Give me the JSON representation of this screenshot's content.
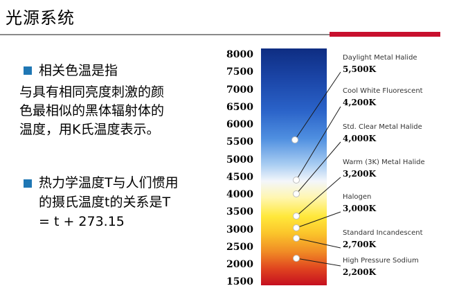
{
  "header": {
    "title": "光源系统"
  },
  "bullets": [
    {
      "heading": "相关色温是指",
      "lines": [
        "与具有相同亮度刺激的颜",
        "色最相似的黑体辐射体的",
        "温度，用K氏温度表示。"
      ]
    },
    {
      "lines": [
        "热力学温度T与人们惯用",
        "的摄氏温度t的关系是T",
        "= t + 273.15"
      ]
    }
  ],
  "scale": [
    "8000",
    "7500",
    "7000",
    "6500",
    "6000",
    "5500",
    "5000",
    "4500",
    "4000",
    "3500",
    "3000",
    "2500",
    "2000",
    "1500"
  ],
  "sources": [
    {
      "name": "Daylight Metal Halide",
      "temp": "5,500K"
    },
    {
      "name": "Cool White Fluorescent",
      "temp": "4,200K"
    },
    {
      "name": "Std. Clear Metal Halide",
      "temp": "4,000K"
    },
    {
      "name": "Warm (3K) Metal Halide",
      "temp": "3,200K"
    },
    {
      "name": "Halogen",
      "temp": "3,000K"
    },
    {
      "name": "Standard Incandescent",
      "temp": "2,700K"
    },
    {
      "name": "High Pressure Sodium",
      "temp": "2,200K"
    }
  ],
  "colors": {
    "accent_red": "#c8102e",
    "bullet_blue": "#1f77b4"
  }
}
